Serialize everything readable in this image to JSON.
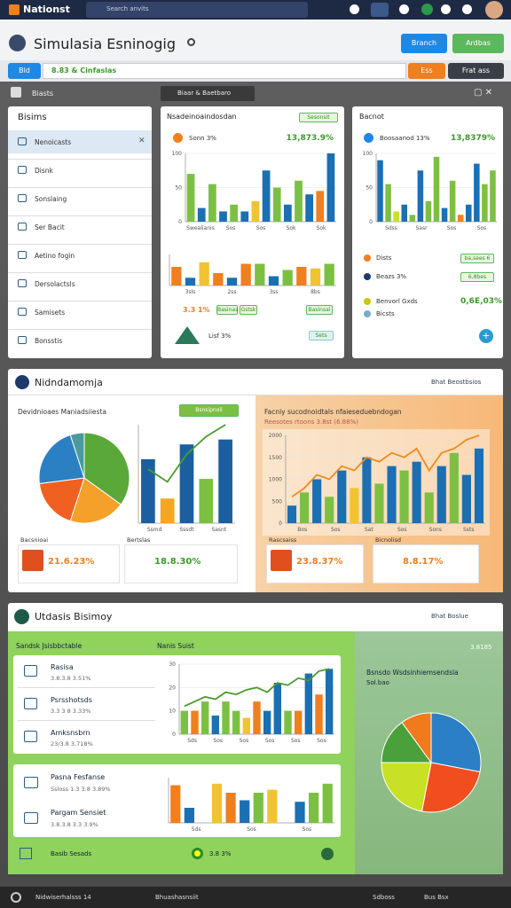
{
  "topbar": {
    "logo": "Nationst",
    "search": "Search anvits"
  },
  "header": {
    "title": "Simulasia Esninogig",
    "buttons": [
      "Branch",
      "Ardbas"
    ]
  },
  "toolbar": {
    "tag": "Bld",
    "field": "8.83 & Cinfaslas",
    "buttons": [
      "Ess",
      "Frat ass"
    ]
  },
  "tabs": [
    "Biasts",
    "Biaar & Baetbaro"
  ],
  "sidebar": {
    "title": "Bisims",
    "items": [
      "Nenoicasts",
      "Disnk",
      "Sonslaing",
      "Ser Bacit",
      "Aetino fogin",
      "Dersolactsls",
      "Samisets",
      "Bonsstis"
    ]
  },
  "card_a": {
    "title": "Nsadeinoaindosdan",
    "badge": "Sesonsit",
    "stat_label": "Sonn 3%",
    "stat_value": "13,873.9%",
    "chart1": {
      "type": "bar",
      "ylim": [
        0,
        100
      ],
      "yticks": [
        0,
        50,
        100
      ],
      "values": [
        70,
        20,
        55,
        15,
        25,
        15,
        30,
        75,
        50,
        25,
        60,
        40,
        45,
        100
      ],
      "colors": [
        "#7cc043",
        "#1b6fb3",
        "#7cc043",
        "#1b6fb3",
        "#7cc043",
        "#1b6fb3",
        "#f0c430",
        "#1b6fb3",
        "#7cc043",
        "#1b6fb3",
        "#7cc043",
        "#1b6fb3",
        "#f07f1e",
        "#1b6fb3"
      ],
      "xlabels": [
        "Swealianis",
        "Sos",
        "Sos",
        "Sok",
        "Sok"
      ]
    },
    "chart2": {
      "type": "bar",
      "ylim": [
        0,
        100
      ],
      "values": [
        60,
        25,
        75,
        40,
        25,
        70,
        70,
        30,
        50,
        60,
        55,
        70
      ],
      "colors": [
        "#f07f1e",
        "#1b6fb3",
        "#f0c430",
        "#f07f1e",
        "#1b6fb3",
        "#f07f1e",
        "#7cc043",
        "#1b6fb3",
        "#7cc043",
        "#f07f1e",
        "#f0c430",
        "#7cc043"
      ],
      "xlabels": [
        "3sls",
        "2ss",
        "3ss",
        "8bs"
      ]
    },
    "foot_value": "3.3 1%",
    "pills": [
      "Basinaa",
      "Gstsk"
    ],
    "pill_right": "Basinsal",
    "bottom_label": "Lisf 3%",
    "bottom_btn": "Sets"
  },
  "card_b": {
    "title": "Bacnot",
    "stat_label": "Boosaanod 13%",
    "stat_value": "13,8379%",
    "chart": {
      "type": "bar",
      "ylim": [
        0,
        100
      ],
      "yticks": [
        0,
        50,
        100
      ],
      "values": [
        90,
        55,
        15,
        25,
        10,
        75,
        30,
        95,
        20,
        60,
        10,
        25,
        85,
        55,
        75
      ],
      "colors": [
        "#1b6fb3",
        "#7cc043",
        "#c8e025",
        "#1b6fb3",
        "#7cc043",
        "#1b6fb3",
        "#7cc043",
        "#7cc043",
        "#1b6fb3",
        "#7cc043",
        "#f07f1e",
        "#1b6fb3",
        "#1b6fb3",
        "#7cc043",
        "#7cc043"
      ],
      "xlabels": [
        "Sdss",
        "Sasr",
        "Sos",
        "Sos"
      ]
    },
    "list": [
      {
        "label": "Dists",
        "pill": "ba,sees 6"
      },
      {
        "label": "Beazs 3%",
        "pill": "6,8bes"
      },
      {
        "label": "Benvorl Gxds",
        "pill": "0,6E,03%"
      },
      {
        "label": "Bicsts"
      }
    ]
  },
  "panel2": {
    "title": "Nidndamomja",
    "filter": "Bhat Beostbsios",
    "left": {
      "subtitle": "Devidnioaes Maniadsiiesta",
      "dropdown": "Bsnsipnoil",
      "pie": {
        "type": "pie",
        "values": [
          35,
          20,
          18,
          22,
          5
        ],
        "colors": [
          "#5aa83a",
          "#f5a02a",
          "#f06020",
          "#2a80c2",
          "#4a9ba0"
        ]
      },
      "chart": {
        "type": "bar",
        "ylim": [
          0,
          100
        ],
        "values": [
          65,
          25,
          80,
          45,
          85
        ],
        "colors": [
          "#1b5fa0",
          "#f5a623",
          "#1b5fa0",
          "#7cc043",
          "#1b5fa0"
        ],
        "line": [
          55,
          42,
          70,
          88,
          100
        ],
        "line_color": "#4a9b2c",
        "xlabels": [
          "Ssmd",
          "Sssdt",
          "Sasnt"
        ]
      },
      "stats": [
        {
          "label": "Bacsnioai",
          "value": "21.6.23%"
        },
        {
          "label": "Bertslas",
          "value": "18.8.30%"
        }
      ]
    },
    "right": {
      "subtitle": "Facniy sucodnoidtals nfaieseduebndogan",
      "sub2": "Reesotes rtoons 3.8st (6.88%)",
      "chart": {
        "type": "bar",
        "ylim": [
          0,
          2000
        ],
        "yticks": [
          0,
          500,
          1000,
          1500,
          2000
        ],
        "values": [
          400,
          700,
          1000,
          600,
          1200,
          800,
          1500,
          900,
          1300,
          1200,
          1400,
          700,
          1300,
          1600,
          1100,
          1700
        ],
        "colors": [
          "#1b6fb3",
          "#7cc043",
          "#1b6fb3",
          "#7cc043",
          "#1b6fb3",
          "#f0c430",
          "#1b6fb3",
          "#7cc043",
          "#1b6fb3",
          "#7cc043",
          "#1b6fb3",
          "#7cc043",
          "#1b6fb3",
          "#7cc043",
          "#1b6fb3",
          "#1b6fb3"
        ],
        "line": [
          600,
          800,
          1100,
          1000,
          1300,
          1200,
          1500,
          1400,
          1600,
          1500,
          1700,
          1200,
          1600,
          1700,
          1900,
          2000
        ],
        "line_color": "#f08a1e",
        "xlabels": [
          "Bos",
          "Sos",
          "Sat",
          "Sos",
          "Sons",
          "Ssts"
        ]
      },
      "stats": [
        {
          "label": "Rascsaiss",
          "value": "23.8.37%"
        },
        {
          "label": "Bicnolisd",
          "value": "8.8.17%"
        }
      ]
    }
  },
  "panel3": {
    "title": "Utdasis Bisimoy",
    "filter": "Bhat Boslue",
    "col_titles": [
      "Sandsk Jsisbbctable",
      "Nanis Suist"
    ],
    "list1": [
      {
        "label": "Rasisa",
        "sub": "3.8.3.8 3.51%"
      },
      {
        "label": "Psrsshotsds",
        "sub": "3.3 3 8 3.33%"
      },
      {
        "label": "Amksnsbrn",
        "sub": "23/3.8 3.718%"
      }
    ],
    "chart1": {
      "type": "bar",
      "ylim": [
        0,
        30
      ],
      "yticks": [
        0,
        10,
        20,
        30
      ],
      "values": [
        10,
        10,
        14,
        8,
        14,
        10,
        7,
        14,
        10,
        22,
        10,
        10,
        26,
        17,
        28
      ],
      "colors": [
        "#7cc043",
        "#f07f1e",
        "#7cc043",
        "#1b6fb3",
        "#7cc043",
        "#7cc043",
        "#f0c430",
        "#f07f1e",
        "#1b6fb3",
        "#1b6fb3",
        "#7cc043",
        "#f07f1e",
        "#1b6fb3",
        "#f07f1e",
        "#1b6fb3"
      ],
      "line": [
        12,
        14,
        16,
        15,
        18,
        17,
        19,
        20,
        18,
        22,
        21,
        24,
        23,
        27,
        28
      ],
      "line_color": "#4a9b2c",
      "xlabels": [
        "Sds",
        "Sos",
        "Sos",
        "Sos",
        "Sos",
        "Sos"
      ]
    },
    "list2": [
      {
        "label": "Pasna Fesfanse",
        "sub": "Ssloss 1.3 3.8 3.89%"
      },
      {
        "label": "Pargam Sensiet",
        "sub": "3.8.3.8 3.3 3.9%"
      }
    ],
    "chart2": {
      "type": "bar",
      "ylim": [
        0,
        30
      ],
      "values": [
        25,
        10,
        0,
        26,
        20,
        15,
        20,
        22,
        0,
        14,
        20,
        26
      ],
      "colors": [
        "#f07f1e",
        "#1b6fb3",
        "#ffffff",
        "#f0c430",
        "#f07f1e",
        "#1b6fb3",
        "#7cc043",
        "#f0c430",
        "#ffffff",
        "#1b6fb3",
        "#7cc043",
        "#7cc043"
      ],
      "xlabels": [
        "Sds",
        "Sos",
        "Sos"
      ]
    },
    "footer_label": "Basib Sesads",
    "footer_value": "3.8 3%",
    "right_value": "3.8185",
    "right_title": "Bsnsdo Wsdsinhiemsendsla",
    "right_sub": "Sol.bao",
    "pie": {
      "type": "pie",
      "values": [
        28,
        25,
        22,
        15,
        10
      ],
      "colors": [
        "#2b7fc4",
        "#f04e1e",
        "#c8e025",
        "#4aa03a",
        "#f07a1e"
      ]
    }
  },
  "bottombar": [
    "Nidwiserhalsss 14",
    "Bhuashasnsiit",
    "Sdboss",
    "Bus Bsx"
  ]
}
